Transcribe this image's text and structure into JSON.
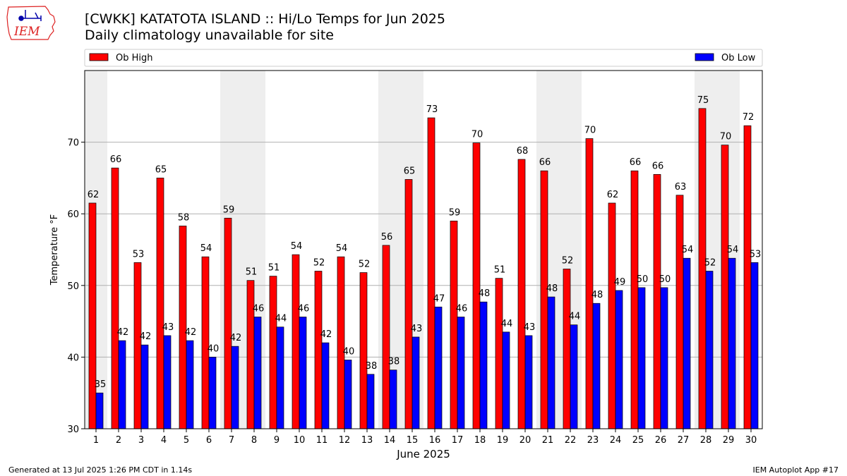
{
  "header": {
    "title": "[CWKK] KATATOTA ISLAND :: Hi/Lo Temps for Jun 2025",
    "subtitle": "Daily climatology unavailable for site",
    "logo_text": "IEM"
  },
  "footer": {
    "generated": "Generated at 13 Jul 2025 1:26 PM CDT in 1.14s",
    "app": "IEM Autoplot App #17"
  },
  "colors": {
    "high": "#ff0000",
    "low": "#0000ff",
    "weekend_band": "#eeeeee",
    "grid": "#b0b0b0"
  },
  "chart_data": {
    "type": "bar",
    "xlabel": "June 2025",
    "ylabel": "Temperature °F",
    "ylim": [
      30,
      80
    ],
    "yticks": [
      30,
      40,
      50,
      60,
      70
    ],
    "grid": "horizontal",
    "legend": "top",
    "categories": [
      "1",
      "2",
      "3",
      "4",
      "5",
      "6",
      "7",
      "8",
      "9",
      "10",
      "11",
      "12",
      "13",
      "14",
      "15",
      "16",
      "17",
      "18",
      "19",
      "20",
      "21",
      "22",
      "23",
      "24",
      "25",
      "26",
      "27",
      "28",
      "29",
      "30"
    ],
    "shaded_days": [
      1,
      7,
      8,
      14,
      15,
      21,
      22,
      28,
      29
    ],
    "series": [
      {
        "name": "Ob High",
        "values": [
          61.5,
          66.4,
          53.2,
          65.0,
          58.3,
          54.0,
          59.4,
          50.7,
          51.3,
          54.3,
          52.0,
          54.0,
          51.8,
          55.6,
          64.8,
          73.4,
          59.0,
          69.9,
          51.0,
          67.6,
          66.0,
          52.3,
          70.5,
          61.5,
          66.0,
          65.5,
          62.6,
          74.7,
          69.6,
          72.3
        ],
        "labels": [
          "62",
          "66",
          "53",
          "65",
          "58",
          "54",
          "59",
          "51",
          "51",
          "54",
          "52",
          "54",
          "52",
          "56",
          "65",
          "73",
          "59",
          "70",
          "51",
          "68",
          "66",
          "52",
          "70",
          "62",
          "66",
          "66",
          "63",
          "75",
          "70",
          "72"
        ]
      },
      {
        "name": "Ob Low",
        "values": [
          35.0,
          42.3,
          41.7,
          43.0,
          42.3,
          40.0,
          41.5,
          45.6,
          44.2,
          45.6,
          42.0,
          39.6,
          37.6,
          38.2,
          42.8,
          47.0,
          45.6,
          47.7,
          43.5,
          43.0,
          48.4,
          44.5,
          47.5,
          49.3,
          49.7,
          49.7,
          53.8,
          52.0,
          53.8,
          53.2
        ],
        "labels": [
          "35",
          "42",
          "42",
          "43",
          "42",
          "40",
          "42",
          "46",
          "44",
          "46",
          "42",
          "40",
          "38",
          "38",
          "43",
          "47",
          "46",
          "48",
          "44",
          "43",
          "48",
          "44",
          "48",
          "49",
          "50",
          "50",
          "54",
          "52",
          "54",
          "53"
        ]
      }
    ]
  }
}
